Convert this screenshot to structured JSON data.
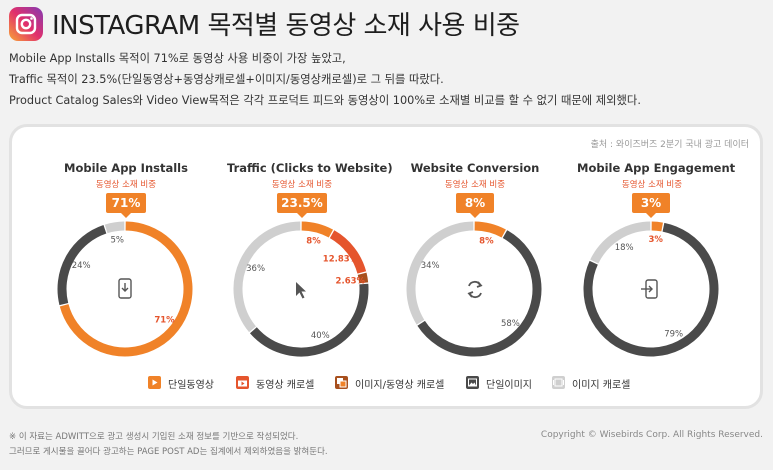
{
  "title": "INSTAGRAM 목적별 동영상 소재 사용 비중",
  "description": [
    "Mobile App Installs 목적이 71%로 동영상 사용 비중이 가장 높았고,",
    "Traffic 목적이 23.5%(단일동영상+동영상캐로셀+이미지/동영상캐로셀)로 그 뒤를 따랐다.",
    "Product Catalog Sales와 Video View목적은 각각 프로덕트 피드와 동영상이 100%로 소재별 비교를 할 수 없기 때문에 제외했다."
  ],
  "source": "출처 : 와이즈버즈 2분기 국내 광고 데이터",
  "ratio_label": "동영상 소재 비중",
  "colors": {
    "single_video": "#f08228",
    "video_carousel": "#e5552d",
    "image_video_carousel": "#a8501e",
    "single_image": "#4a4a4a",
    "image_carousel": "#cfcfcf"
  },
  "chart_data": [
    {
      "type": "pie",
      "title": "Mobile App Installs",
      "badge": "71%",
      "center_icon": "download-icon",
      "slices": [
        {
          "category": "단일동영상",
          "value": 71,
          "label": "71%"
        },
        {
          "category": "단일이미지",
          "value": 24,
          "label": "24%"
        },
        {
          "category": "이미지 캐로셀",
          "value": 5,
          "label": "5%"
        }
      ]
    },
    {
      "type": "pie",
      "title": "Traffic (Clicks to Website)",
      "badge": "23.5%",
      "center_icon": "cursor-icon",
      "slices": [
        {
          "category": "단일동영상",
          "value": 8,
          "label": "8%"
        },
        {
          "category": "동영상 캐로셀",
          "value": 12.83,
          "label": "12.83%"
        },
        {
          "category": "이미지/동영상 캐로셀",
          "value": 2.63,
          "label": "2.63%"
        },
        {
          "category": "단일이미지",
          "value": 40,
          "label": "40%"
        },
        {
          "category": "이미지 캐로셀",
          "value": 36,
          "label": "36%"
        }
      ]
    },
    {
      "type": "pie",
      "title": "Website Conversion",
      "badge": "8%",
      "center_icon": "refresh-icon",
      "slices": [
        {
          "category": "단일동영상",
          "value": 8,
          "label": "8%"
        },
        {
          "category": "단일이미지",
          "value": 58,
          "label": "58%"
        },
        {
          "category": "이미지 캐로셀",
          "value": 34,
          "label": "34%"
        }
      ]
    },
    {
      "type": "pie",
      "title": "Mobile App Engagement",
      "badge": "3%",
      "center_icon": "phone-login-icon",
      "slices": [
        {
          "category": "단일동영상",
          "value": 3,
          "label": "3%"
        },
        {
          "category": "단일이미지",
          "value": 79,
          "label": "79%"
        },
        {
          "category": "이미지 캐로셀",
          "value": 18,
          "label": "18%"
        }
      ]
    }
  ],
  "legend": [
    {
      "key": "single_video",
      "label": "단일동영상",
      "icon": "play-icon"
    },
    {
      "key": "video_carousel",
      "label": "동영상 캐로셀",
      "icon": "video-carousel-icon"
    },
    {
      "key": "image_video_carousel",
      "label": "이미지/동영상 캐로셀",
      "icon": "image-video-carousel-icon"
    },
    {
      "key": "single_image",
      "label": "단일이미지",
      "icon": "image-icon"
    },
    {
      "key": "image_carousel",
      "label": "이미지 캐로셀",
      "icon": "image-carousel-icon"
    }
  ],
  "footnotes": [
    "※ 이 자료는 ADWITT으로 광고 생성시 기입된 소재 정보를 기반으로 작성되었다.",
    "그러므로 게시물을 끌어다 광고하는 PAGE POST AD는 집계에서 제외하였음을 밝혀둔다."
  ],
  "copyright": "Copyright © Wisebirds Corp. All Rights Reserved."
}
